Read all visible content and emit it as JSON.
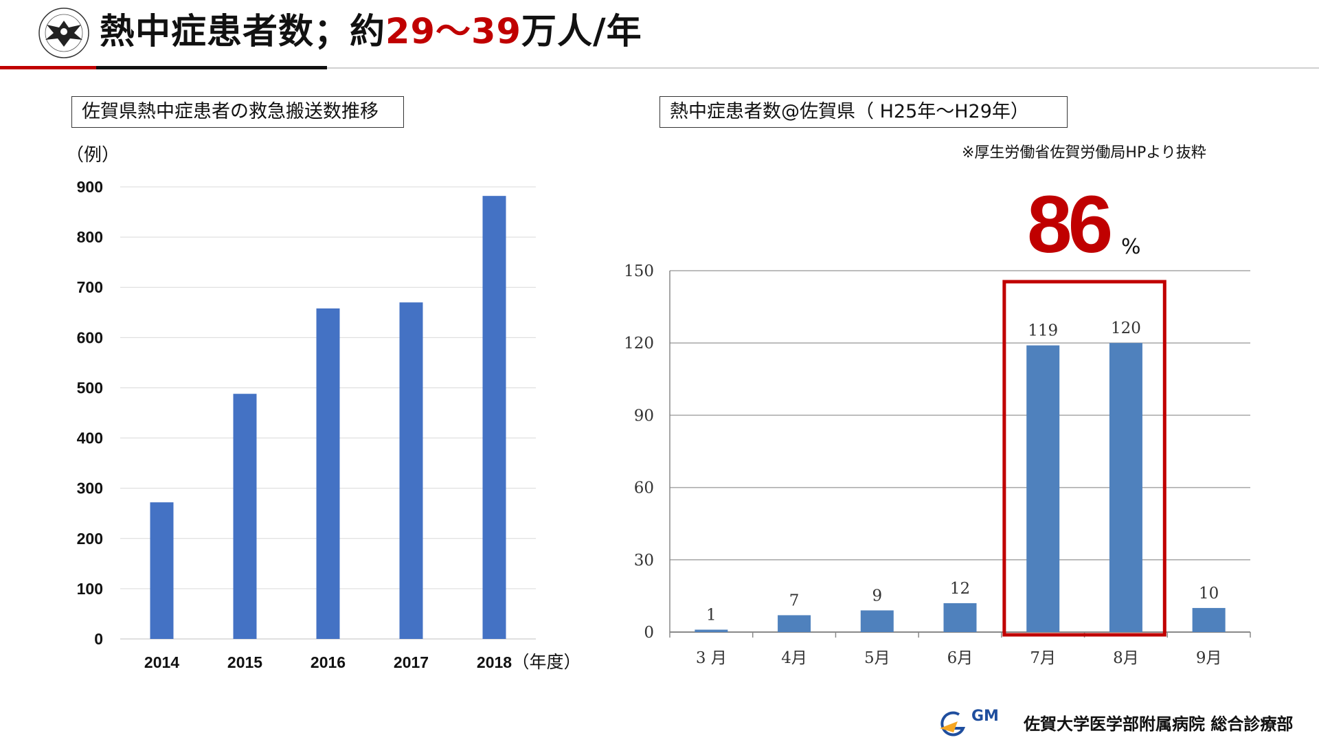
{
  "header": {
    "title_prefix": "熱中症患者数；約",
    "title_highlight": "29～39",
    "title_suffix": "万人/年"
  },
  "left_panel": {
    "box_label": "佐賀県熱中症患者の救急搬送数推移",
    "unit_label": "（例）"
  },
  "right_panel": {
    "box_label": "熱中症患者数@佐賀県（ H25年～H29年）",
    "source_note": "※厚生労働省佐賀労働局HPより抜粋",
    "highlight_value": "86",
    "highlight_symbol": "%"
  },
  "footer": {
    "logo_text": "GM",
    "institution": "佐賀大学医学部附属病院 総合診療部"
  },
  "colors": {
    "accent_red": "#c00000",
    "left_bar": "#4472c4",
    "right_bar": "#4f81bd"
  },
  "chart_data": [
    {
      "type": "bar",
      "categories": [
        "2014",
        "2015",
        "2016",
        "2017",
        "2018"
      ],
      "x_unit_label": "（年度）",
      "values": [
        272,
        488,
        658,
        670,
        882
      ],
      "yticks": [
        0,
        100,
        200,
        300,
        400,
        500,
        600,
        700,
        800,
        900
      ],
      "ylim": [
        0,
        900
      ],
      "grid": true
    },
    {
      "type": "bar",
      "categories": [
        "3 月",
        "4月",
        "5月",
        "6月",
        "7月",
        "8月",
        "9月"
      ],
      "values": [
        1,
        7,
        9,
        12,
        119,
        120,
        10
      ],
      "data_labels": [
        "1",
        "7",
        "9",
        "12",
        "119",
        "120",
        "10"
      ],
      "yticks": [
        0,
        30,
        60,
        90,
        120,
        150
      ],
      "ylim": [
        0,
        150
      ],
      "grid": true,
      "highlight_categories": [
        "7月",
        "8月"
      ]
    }
  ]
}
